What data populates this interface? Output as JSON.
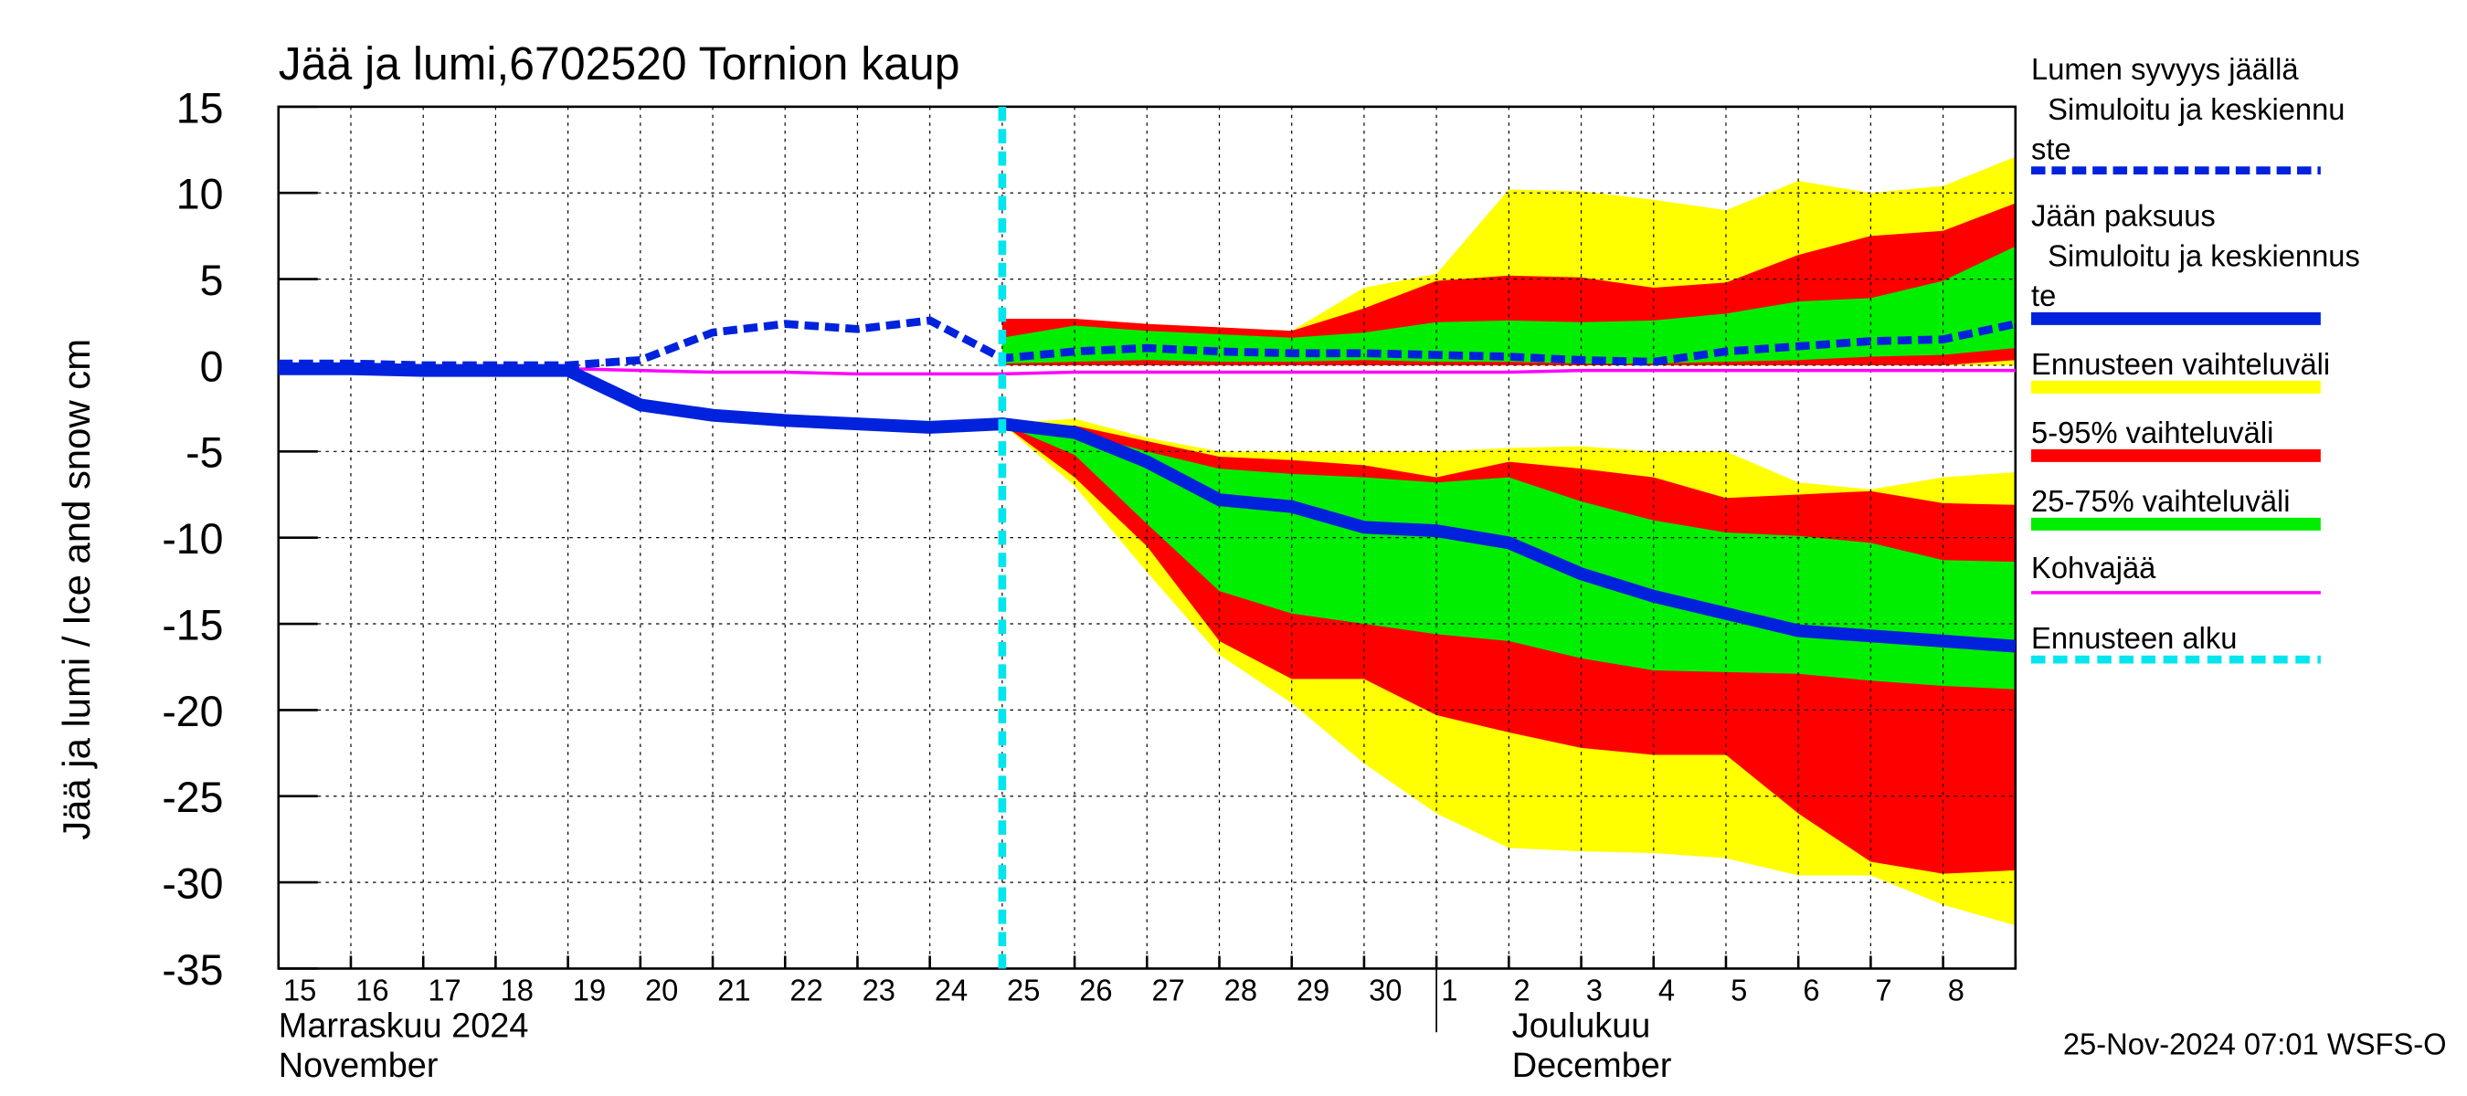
{
  "chart_data": {
    "type": "line",
    "title": "Jää ja lumi,6702520 Tornion kaup",
    "y_label": "Jää ja lumi / Ice and snow    cm",
    "categories": [
      "15",
      "16",
      "17",
      "18",
      "19",
      "20",
      "21",
      "22",
      "23",
      "24",
      "25",
      "26",
      "27",
      "28",
      "29",
      "30",
      "1",
      "2",
      "3",
      "4",
      "5",
      "6",
      "7",
      "8",
      null
    ],
    "months": [
      {
        "label": "Marraskuu 2024",
        "label_en": "November",
        "start": "15"
      },
      {
        "label": "Joulukuu",
        "label_en": "December",
        "start": "1"
      }
    ],
    "ylim": [
      -35,
      15
    ],
    "yticks": [
      -35,
      -30,
      -25,
      -20,
      -15,
      -10,
      -5,
      0,
      5,
      10,
      15
    ],
    "grid": true,
    "bands": [
      {
        "name": "Ennusteen vaihteluväli",
        "color": "#ffff00",
        "parts": [
          {
            "upper": [
              null,
              null,
              null,
              null,
              null,
              null,
              null,
              null,
              null,
              null,
              2.7,
              2.7,
              2.4,
              2.2,
              2.0,
              4.5,
              5.3,
              10.2,
              10.1,
              9.6,
              9.0,
              10.7,
              10.0,
              10.4,
              12.1
            ],
            "lower": [
              null,
              null,
              null,
              null,
              null,
              null,
              null,
              null,
              null,
              null,
              0,
              0,
              0,
              0,
              0,
              0,
              0,
              0,
              0,
              0,
              0,
              0,
              0,
              0,
              0
            ]
          },
          {
            "upper": [
              null,
              null,
              null,
              null,
              null,
              null,
              null,
              null,
              null,
              null,
              -3.4,
              -3.1,
              -4.2,
              -5.0,
              -5.0,
              -5.0,
              -5.0,
              -4.8,
              -4.7,
              -5.0,
              -5.0,
              -6.8,
              -7.2,
              -6.5,
              -6.2
            ],
            "lower": [
              null,
              null,
              null,
              null,
              null,
              null,
              null,
              null,
              null,
              null,
              -3.4,
              -7.0,
              -12.0,
              -16.8,
              -19.6,
              -23.1,
              -26.0,
              -28.0,
              -28.2,
              -28.3,
              -28.6,
              -29.6,
              -29.6,
              -31.3,
              -32.5
            ]
          }
        ]
      },
      {
        "name": "5-95% vaihteluväli",
        "color": "#ff0000",
        "parts": [
          {
            "upper": [
              null,
              null,
              null,
              null,
              null,
              null,
              null,
              null,
              null,
              null,
              2.7,
              2.7,
              2.4,
              2.2,
              2.0,
              3.3,
              4.9,
              5.2,
              5.1,
              4.5,
              4.8,
              6.4,
              7.5,
              7.8,
              9.4
            ],
            "lower": [
              null,
              null,
              null,
              null,
              null,
              null,
              null,
              null,
              null,
              null,
              0,
              0,
              0,
              0,
              0,
              0,
              0,
              0,
              0,
              0,
              0,
              0,
              0,
              0,
              0.3
            ]
          },
          {
            "upper": [
              null,
              null,
              null,
              null,
              null,
              null,
              null,
              null,
              null,
              null,
              -3.4,
              -3.5,
              -4.4,
              -5.3,
              -5.5,
              -5.8,
              -6.5,
              -5.6,
              -6.0,
              -6.5,
              -7.7,
              -7.5,
              -7.3,
              -8.0,
              -8.1
            ],
            "lower": [
              null,
              null,
              null,
              null,
              null,
              null,
              null,
              null,
              null,
              null,
              -3.4,
              -6.5,
              -10.5,
              -16.0,
              -18.2,
              -18.2,
              -20.3,
              -21.3,
              -22.2,
              -22.6,
              -22.6,
              -26.0,
              -28.8,
              -29.5,
              -29.3
            ]
          }
        ]
      },
      {
        "name": "25-75% vaihteluväli",
        "color": "#00ee00",
        "parts": [
          {
            "upper": [
              null,
              null,
              null,
              null,
              null,
              null,
              null,
              null,
              null,
              null,
              1.6,
              2.3,
              2.0,
              1.8,
              1.6,
              1.9,
              2.5,
              2.6,
              2.5,
              2.6,
              3.0,
              3.7,
              3.9,
              4.9,
              6.9
            ],
            "lower": [
              null,
              null,
              null,
              null,
              null,
              null,
              null,
              null,
              null,
              null,
              0.1,
              0.2,
              0.3,
              0.2,
              0.2,
              0.3,
              0.2,
              0.2,
              0.1,
              0.1,
              0.2,
              0.3,
              0.5,
              0.6,
              1.0
            ]
          },
          {
            "upper": [
              null,
              null,
              null,
              null,
              null,
              null,
              null,
              null,
              null,
              null,
              -3.4,
              -3.9,
              -5.0,
              -6.0,
              -6.3,
              -6.5,
              -6.8,
              -6.5,
              -7.9,
              -9.0,
              -9.7,
              -9.9,
              -10.3,
              -11.3,
              -11.4
            ],
            "lower": [
              null,
              null,
              null,
              null,
              null,
              null,
              null,
              null,
              null,
              null,
              -3.4,
              -5.2,
              -9.2,
              -13.1,
              -14.4,
              -15.0,
              -15.6,
              -16.0,
              -17.0,
              -17.7,
              -17.8,
              -17.9,
              -18.3,
              -18.6,
              -18.8
            ]
          }
        ]
      }
    ],
    "series": [
      {
        "name": "Lumen syvyys jäällä\n  Simuloitu ja keskiennu\nste",
        "color": "#0022dd",
        "dashed": true,
        "values": [
          0.1,
          0.1,
          0,
          0,
          0,
          0.3,
          1.9,
          2.4,
          2.1,
          2.6,
          0.4,
          0.8,
          1.0,
          0.8,
          0.7,
          0.7,
          0.6,
          0.5,
          0.3,
          0.2,
          0.8,
          1.1,
          1.4,
          1.5,
          2.4
        ]
      },
      {
        "name": "Jään paksuus\n  Simuloitu ja keskiennus\nte",
        "color": "#0022dd",
        "dashed": false,
        "values": [
          -0.2,
          -0.2,
          -0.3,
          -0.3,
          -0.3,
          -2.3,
          -2.9,
          -3.2,
          -3.4,
          -3.6,
          -3.4,
          -3.9,
          -5.6,
          -7.8,
          -8.2,
          -9.4,
          -9.6,
          -10.3,
          -12.1,
          -13.4,
          -14.4,
          -15.4,
          -15.7,
          -16.0,
          -16.3
        ]
      },
      {
        "name": "Kohvajää",
        "color": "#ff00ff",
        "dashed": false,
        "values": [
          -0.1,
          -0.1,
          -0.1,
          -0.1,
          -0.2,
          -0.3,
          -0.4,
          -0.4,
          -0.5,
          -0.5,
          -0.5,
          -0.4,
          -0.4,
          -0.4,
          -0.4,
          -0.4,
          -0.4,
          -0.4,
          -0.3,
          -0.3,
          -0.3,
          -0.3,
          -0.3,
          -0.3,
          -0.3
        ]
      }
    ],
    "forecast_start": {
      "name": "Ennusteen alku",
      "color": "#00e5ee",
      "at": "25"
    },
    "footer": "25-Nov-2024 07:01 WSFS-O"
  }
}
